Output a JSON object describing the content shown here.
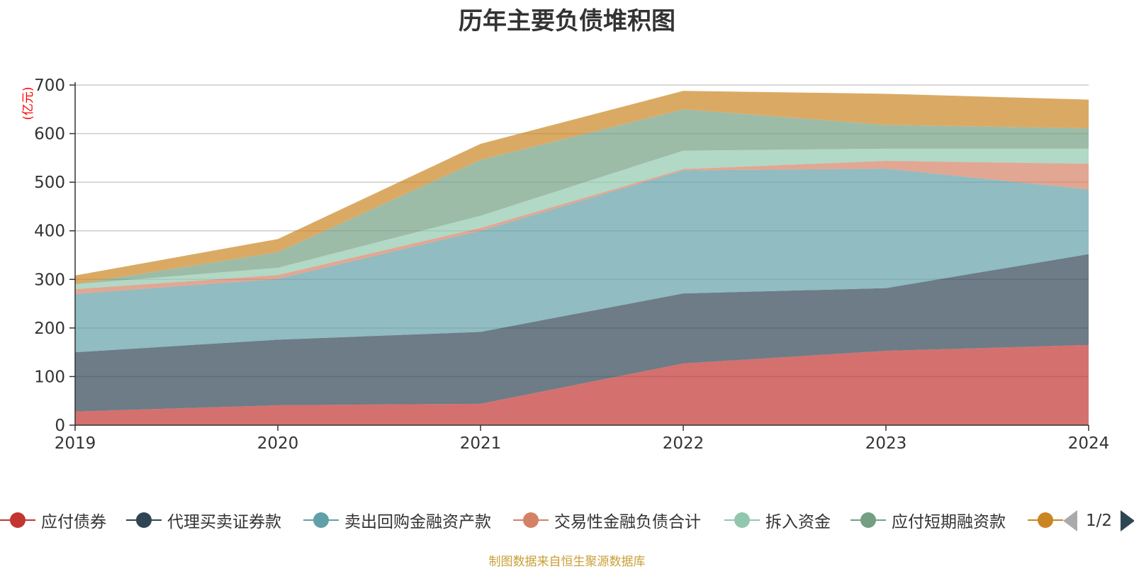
{
  "title": "历年主要负债堆积图",
  "source": "制图数据来自恒生聚源数据库",
  "chart_data": {
    "type": "area",
    "stacked": true,
    "title": "历年主要负债堆积图",
    "ylabel": "(亿元)",
    "xlabel": "",
    "categories": [
      "2019",
      "2020",
      "2021",
      "2022",
      "2023",
      "2024"
    ],
    "ylim": [
      0,
      700
    ],
    "yticks": [
      0,
      100,
      200,
      300,
      400,
      500,
      600,
      700
    ],
    "grid": true,
    "legend_position": "bottom",
    "series": [
      {
        "name": "应付债券",
        "color": "#c23531",
        "values": [
          28,
          41,
          44,
          127,
          153,
          165
        ]
      },
      {
        "name": "代理买卖证券款",
        "color": "#2f4554",
        "values": [
          122,
          135,
          148,
          144,
          129,
          187
        ]
      },
      {
        "name": "卖出回购金融资产款",
        "color": "#61a0a8",
        "values": [
          120,
          125,
          208,
          253,
          246,
          133
        ]
      },
      {
        "name": "交易性金融负债合计",
        "color": "#d48265",
        "values": [
          10,
          8,
          6,
          3,
          16,
          53
        ]
      },
      {
        "name": "拆入资金",
        "color": "#91c7ae",
        "values": [
          10,
          15,
          25,
          38,
          25,
          31
        ]
      },
      {
        "name": "应付短期融资款",
        "color": "#749f83",
        "values": [
          0,
          32,
          115,
          85,
          49,
          42
        ]
      },
      {
        "name": "",
        "color": "#ca8622",
        "values": [
          18,
          27,
          33,
          38,
          64,
          59
        ]
      }
    ]
  },
  "legend": {
    "items": [
      {
        "label": "应付债券",
        "color": "#c23531"
      },
      {
        "label": "代理买卖证券款",
        "color": "#2f4554"
      },
      {
        "label": "卖出回购金融资产款",
        "color": "#61a0a8"
      },
      {
        "label": "交易性金融负债合计",
        "color": "#d48265"
      },
      {
        "label": "拆入资金",
        "color": "#91c7ae"
      },
      {
        "label": "应付短期融资款",
        "color": "#749f83"
      },
      {
        "label": "",
        "color": "#ca8622"
      }
    ],
    "page_indicator": "1/2"
  }
}
